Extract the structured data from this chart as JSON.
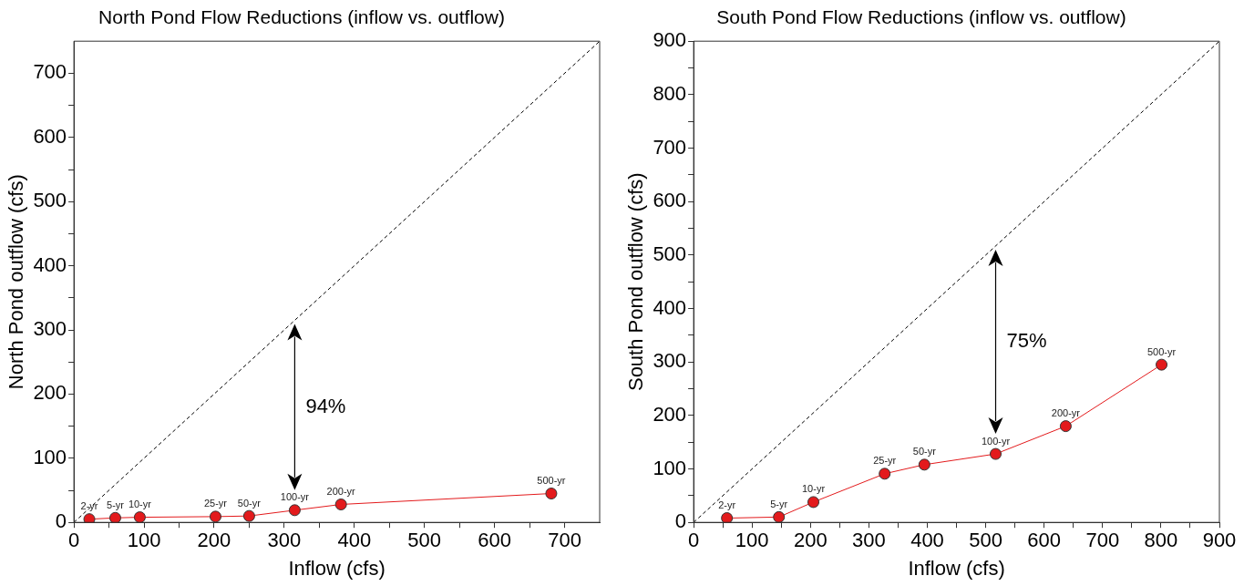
{
  "chart_data": [
    {
      "type": "scatter",
      "title": "North Pond Flow Reductions (inflow vs. outflow)",
      "xlabel": "Inflow (cfs)",
      "ylabel": "North Pond outflow (cfs)",
      "xlim": [
        0,
        750
      ],
      "ylim": [
        0,
        750
      ],
      "xticks": [
        0,
        {
          "value": 50,
          "label": null
        },
        100,
        {
          "value": 150,
          "label": null
        },
        200,
        {
          "value": 250,
          "label": null
        },
        300,
        {
          "value": 350,
          "label": null
        },
        400,
        {
          "value": 450,
          "label": null
        },
        500,
        {
          "value": 550,
          "label": null
        },
        600,
        {
          "value": 650,
          "label": null
        },
        700
      ],
      "yticks": [
        0,
        {
          "value": 50,
          "label": null
        },
        100,
        {
          "value": 150,
          "label": null
        },
        200,
        {
          "value": 250,
          "label": null
        },
        300,
        {
          "value": 350,
          "label": null
        },
        400,
        {
          "value": 450,
          "label": null
        },
        500,
        {
          "value": 550,
          "label": null
        },
        600,
        {
          "value": 650,
          "label": null
        },
        700
      ],
      "grid": false,
      "legend": false,
      "series": [
        {
          "type": "line",
          "color": "#000000",
          "line_style": "dashed",
          "marker": "none",
          "x": [
            0,
            750
          ],
          "values": [
            0,
            750
          ]
        },
        {
          "type": "line",
          "color": "#e31a1c",
          "line_style": "solid",
          "marker": "circle",
          "x": [
            22,
            59,
            94,
            202,
            250,
            315,
            381,
            681
          ],
          "values": [
            5,
            7,
            8,
            9,
            10,
            19,
            28,
            45
          ]
        }
      ],
      "annotations": [
        "94%",
        {
          "text": "2-yr",
          "x": 22,
          "y": 5
        },
        {
          "text": "5-yr",
          "x": 59,
          "y": 7
        },
        {
          "text": "10-yr",
          "x": 94,
          "y": 8
        },
        {
          "text": "25-yr",
          "x": 202,
          "y": 9
        },
        {
          "text": "50-yr",
          "x": 250,
          "y": 10
        },
        {
          "text": "100-yr",
          "x": 315,
          "y": 19
        },
        {
          "text": "200-yr",
          "x": 381,
          "y": 28
        },
        {
          "text": "500-yr",
          "x": 681,
          "y": 45
        }
      ]
    },
    {
      "type": "scatter",
      "title": "South Pond Flow Reductions (inflow vs. outflow)",
      "xlabel": "Inflow (cfs)",
      "ylabel": "South Pond outflow (cfs)",
      "xlim": [
        0,
        900
      ],
      "ylim": [
        0,
        900
      ],
      "xticks": [
        0,
        {
          "value": 50,
          "label": null
        },
        100,
        {
          "value": 150,
          "label": null
        },
        200,
        {
          "value": 250,
          "label": null
        },
        300,
        {
          "value": 350,
          "label": null
        },
        400,
        {
          "value": 450,
          "label": null
        },
        500,
        {
          "value": 550,
          "label": null
        },
        600,
        {
          "value": 650,
          "label": null
        },
        700,
        {
          "value": 750,
          "label": null
        },
        800,
        {
          "value": 850,
          "label": null
        },
        900
      ],
      "yticks": [
        0,
        {
          "value": 50,
          "label": null
        },
        100,
        {
          "value": 150,
          "label": null
        },
        200,
        {
          "value": 250,
          "label": null
        },
        300,
        {
          "value": 350,
          "label": null
        },
        400,
        {
          "value": 450,
          "label": null
        },
        500,
        {
          "value": 550,
          "label": null
        },
        600,
        {
          "value": 650,
          "label": null
        },
        700,
        {
          "value": 750,
          "label": null
        },
        800,
        {
          "value": 850,
          "label": null
        },
        900
      ],
      "grid": false,
      "legend": false,
      "series": [
        {
          "type": "line",
          "color": "#000000",
          "line_style": "dashed",
          "marker": "none",
          "x": [
            0,
            900
          ],
          "values": [
            0,
            900
          ]
        },
        {
          "type": "line",
          "color": "#e31a1c",
          "line_style": "solid",
          "marker": "circle",
          "x": [
            57,
            146,
            205,
            327,
            395,
            517,
            637,
            801
          ],
          "values": [
            8,
            10,
            38,
            91,
            108,
            128,
            180,
            295
          ]
        }
      ],
      "annotations": [
        "75%",
        {
          "text": "2-yr",
          "x": 57,
          "y": 8
        },
        {
          "text": "5-yr",
          "x": 146,
          "y": 10
        },
        {
          "text": "10-yr",
          "x": 205,
          "y": 38
        },
        {
          "text": "25-yr",
          "x": 327,
          "y": 91
        },
        {
          "text": "50-yr",
          "x": 395,
          "y": 108
        },
        {
          "text": "100-yr",
          "x": 517,
          "y": 128
        },
        {
          "text": "200-yr",
          "x": 637,
          "y": 180
        },
        {
          "text": "500-yr",
          "x": 801,
          "y": 295
        }
      ]
    }
  ]
}
